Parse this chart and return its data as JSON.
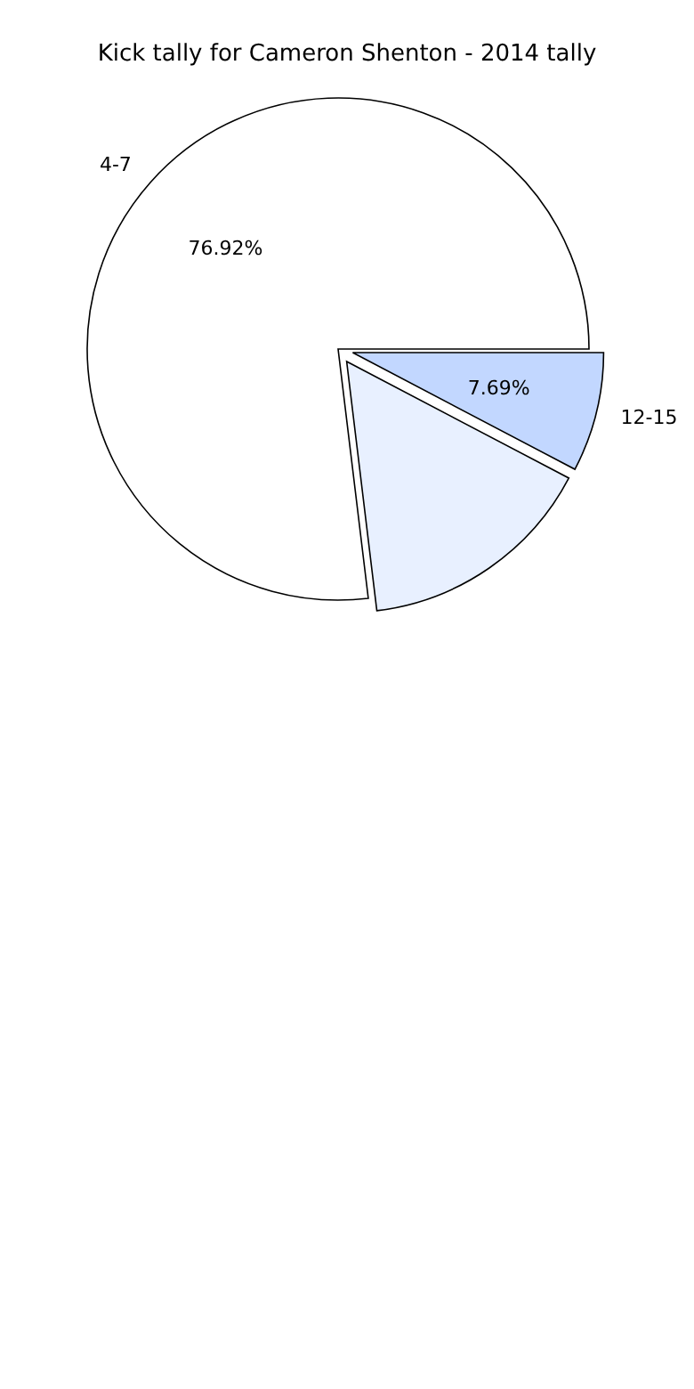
{
  "chart_data": {
    "type": "pie",
    "title": "Kick tally for Cameron Shenton - 2014 tally",
    "categories": [
      "4-7",
      null,
      "12-15"
    ],
    "values": [
      76.92,
      15.39,
      7.69
    ],
    "colors": [
      "#ffffff",
      "#e8f0ff",
      "#c2d7ff"
    ],
    "value_labels": [
      "76.92%",
      null,
      "7.69%"
    ]
  }
}
